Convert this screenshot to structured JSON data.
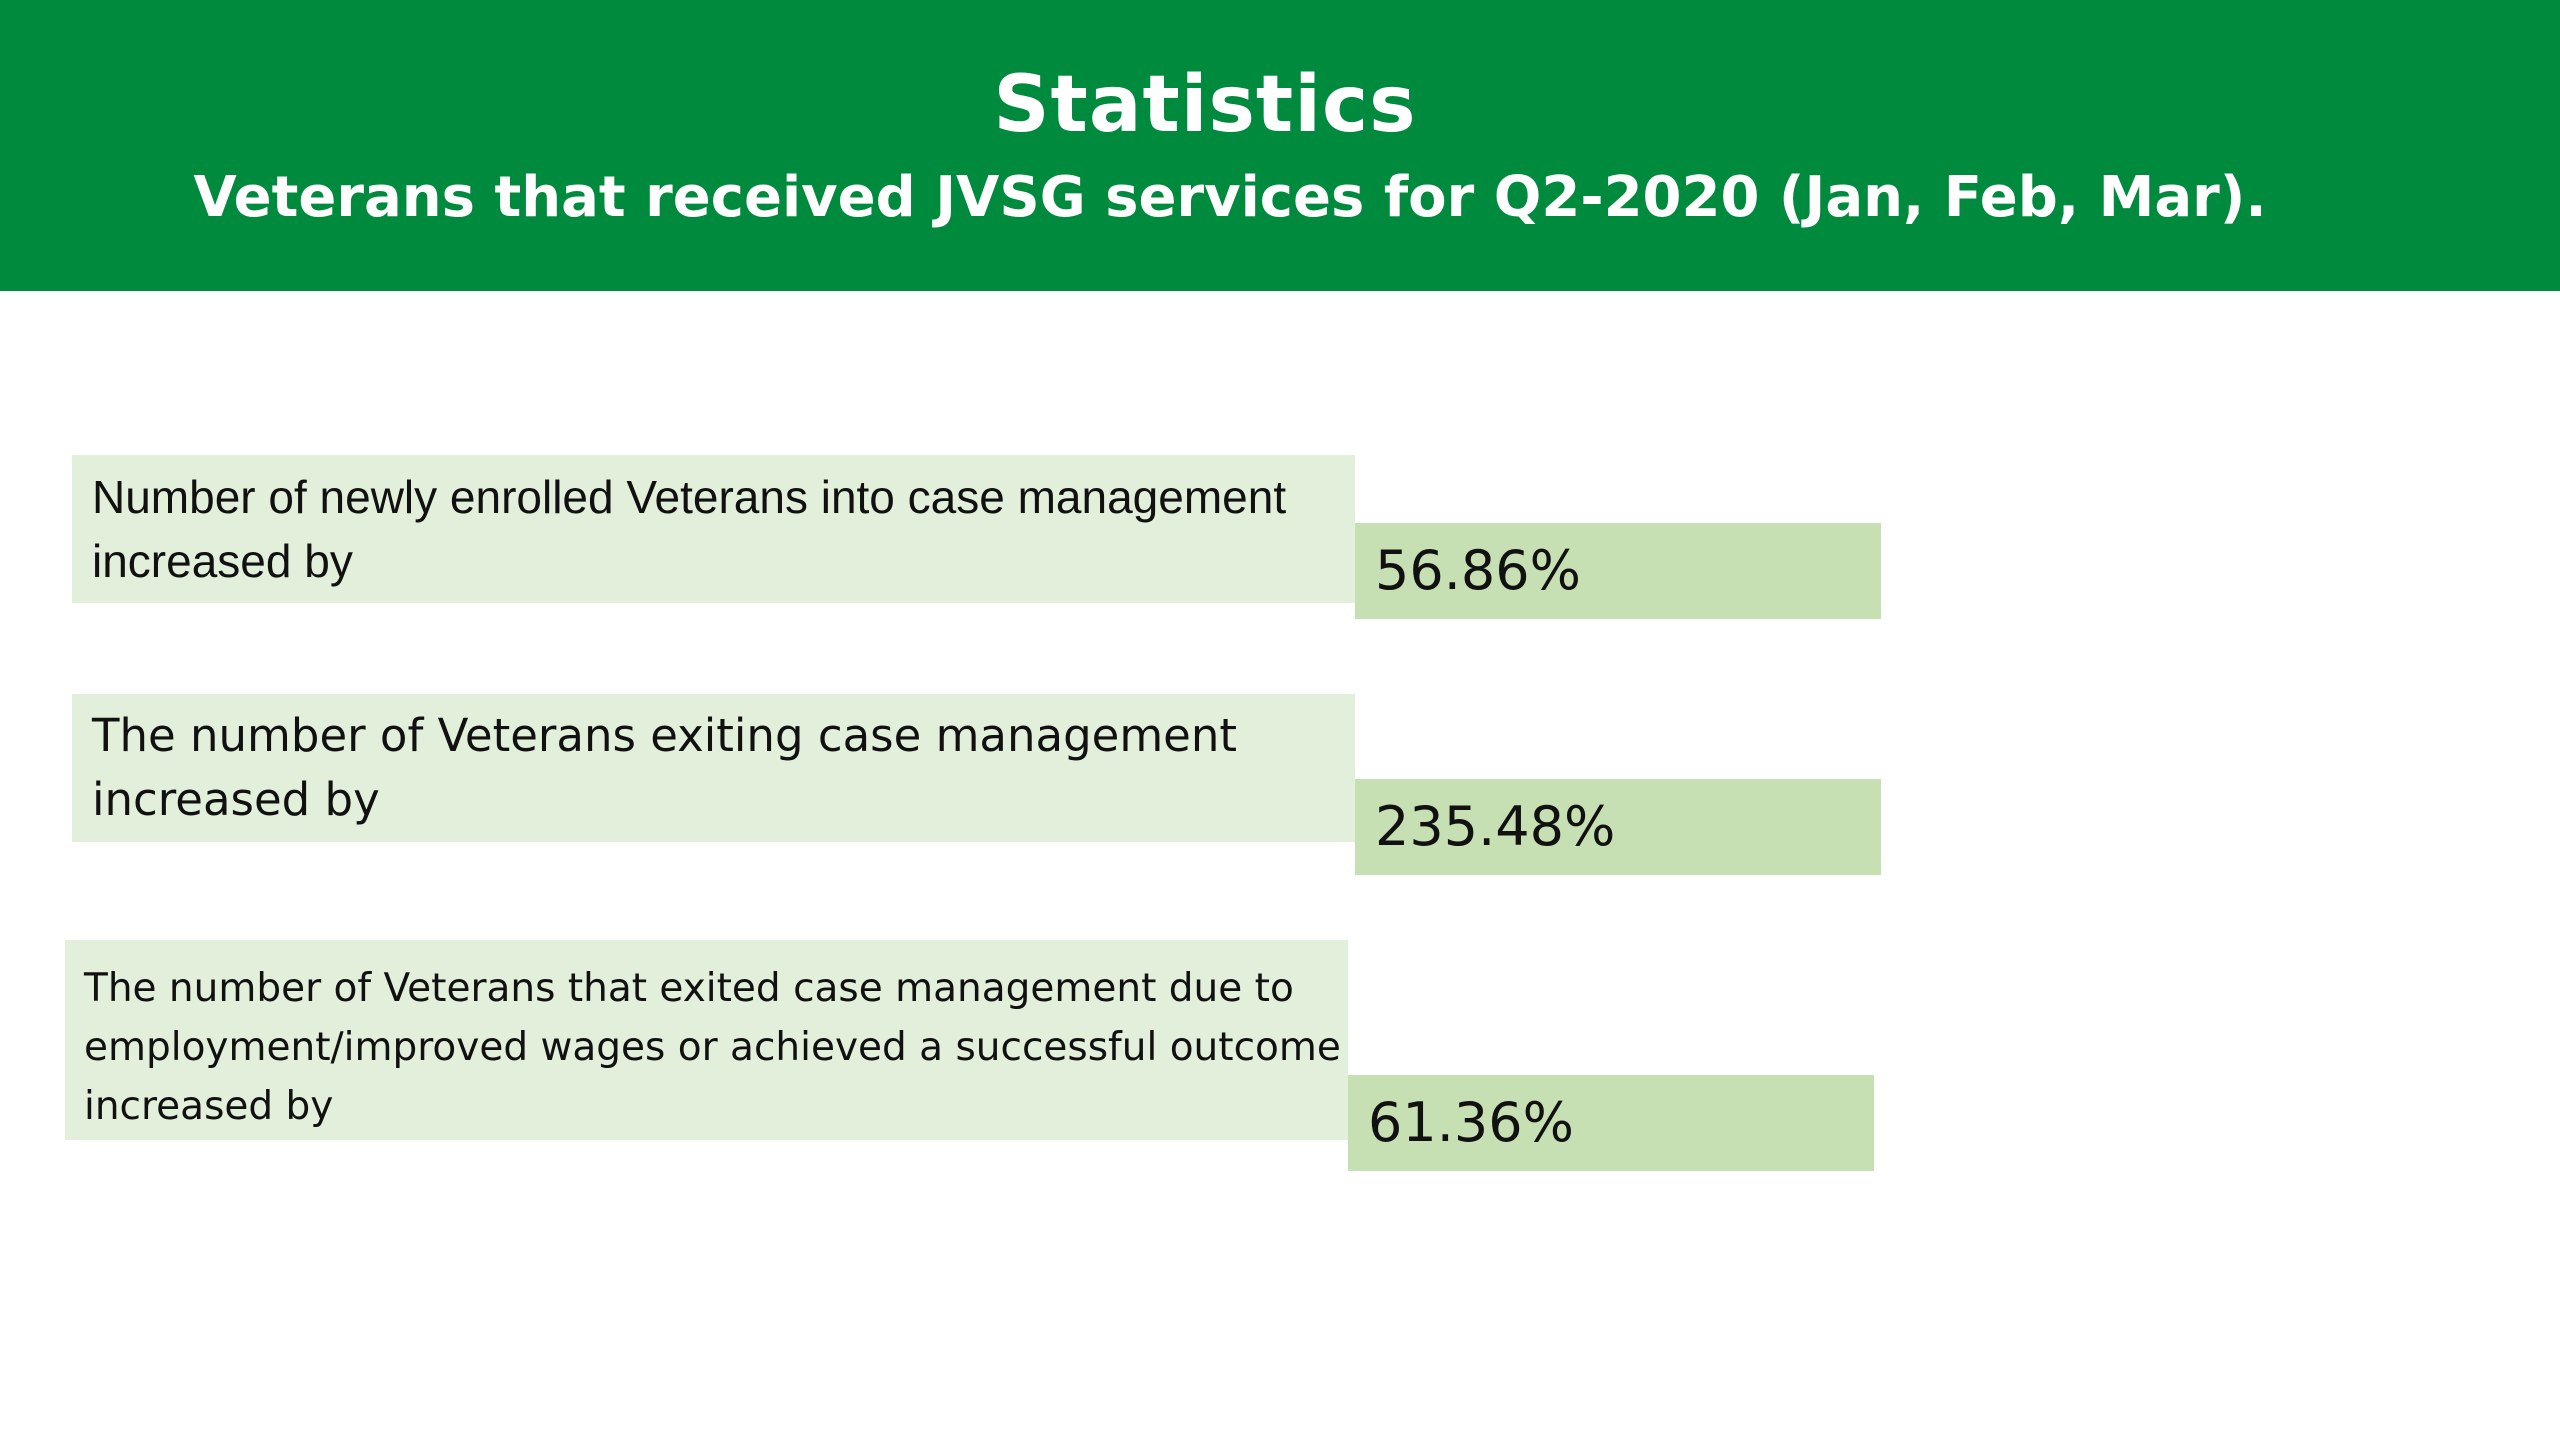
{
  "header": {
    "title": "Statistics",
    "subtitle": "Veterans that received JVSG services for Q2-2020 (Jan, Feb, Mar).",
    "background_color": "#008a3e"
  },
  "stats": [
    {
      "label": "Number of newly enrolled Veterans into case management increased by",
      "value": "56.86%"
    },
    {
      "label": "The number of Veterans exiting case management increased by",
      "value": "235.48%"
    },
    {
      "label": "The number of Veterans that exited case management due to employment/improved wages or achieved a successful outcome increased by",
      "value": "61.36%"
    }
  ],
  "colors": {
    "label_background": "#e2efda",
    "value_background": "#c6dfb3"
  }
}
